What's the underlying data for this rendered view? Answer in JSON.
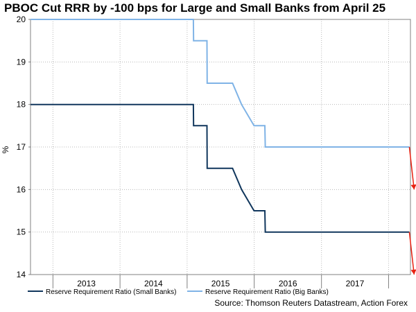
{
  "chart_data": {
    "type": "line",
    "title": "PBOC Cut RRR by -100 bps for Large and Small Banks from April 25",
    "xlabel": "",
    "ylabel": "%",
    "ylim": [
      14,
      20
    ],
    "xlim": [
      "2012-09-01",
      "2018-04-30"
    ],
    "x_tick_labels": [
      "2013",
      "2014",
      "2015",
      "2016",
      "2017"
    ],
    "y_tick_labels": [
      "14",
      "15",
      "16",
      "17",
      "18",
      "19",
      "20"
    ],
    "grid": true,
    "legend_position": "bottom",
    "series": [
      {
        "name": "Reserve Requirement Ratio (Small Banks)",
        "color": "#10365c",
        "points": [
          [
            "2012-09-01",
            18.0
          ],
          [
            "2015-02-04",
            18.0
          ],
          [
            "2015-02-05",
            17.5
          ],
          [
            "2015-04-19",
            17.5
          ],
          [
            "2015-04-20",
            16.5
          ],
          [
            "2015-09-05",
            16.5
          ],
          [
            "2015-10-24",
            16.0
          ],
          [
            "2015-12-31",
            15.5
          ],
          [
            "2016-02-28",
            15.5
          ],
          [
            "2016-03-01",
            15.0
          ],
          [
            "2018-04-24",
            15.0
          ]
        ]
      },
      {
        "name": "Reserve Requirement Ratio (Big Banks)",
        "color": "#7fb3e6",
        "points": [
          [
            "2012-09-01",
            20.0
          ],
          [
            "2015-02-04",
            20.0
          ],
          [
            "2015-02-05",
            19.5
          ],
          [
            "2015-04-19",
            19.5
          ],
          [
            "2015-04-20",
            18.5
          ],
          [
            "2015-09-05",
            18.5
          ],
          [
            "2015-10-24",
            18.0
          ],
          [
            "2015-12-31",
            17.5
          ],
          [
            "2016-02-28",
            17.5
          ],
          [
            "2016-03-01",
            17.0
          ],
          [
            "2018-04-24",
            17.0
          ]
        ]
      }
    ],
    "annotations": [
      {
        "type": "arrow",
        "color": "#e82010",
        "from": [
          "2018-04-24",
          17.0
        ],
        "to": [
          "2018-05-20",
          16.0
        ]
      },
      {
        "type": "arrow",
        "color": "#e82010",
        "from": [
          "2018-04-24",
          15.0
        ],
        "to": [
          "2018-05-20",
          14.0
        ]
      }
    ],
    "source": "Source: Thomson Reuters Datastream, Action Forex"
  }
}
